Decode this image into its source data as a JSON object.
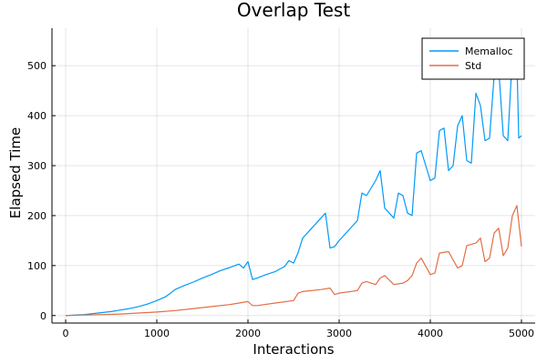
{
  "chart_data": {
    "type": "line",
    "title": "Overlap Test",
    "xlabel": "Interactions",
    "ylabel": "Elapsed Time",
    "xlim": [
      -150,
      5150
    ],
    "ylim": [
      -15,
      575
    ],
    "xticks": [
      0,
      1000,
      2000,
      3000,
      4000,
      5000
    ],
    "yticks": [
      0,
      100,
      200,
      300,
      400,
      500
    ],
    "grid": true,
    "legend_position": "top-right",
    "series": [
      {
        "name": "Memalloc",
        "color": "#009af9",
        "x": [
          0,
          100,
          200,
          300,
          400,
          500,
          600,
          700,
          800,
          900,
          1000,
          1100,
          1150,
          1200,
          1300,
          1400,
          1500,
          1600,
          1700,
          1800,
          1900,
          1950,
          2000,
          2050,
          2100,
          2200,
          2300,
          2400,
          2450,
          2500,
          2550,
          2600,
          2700,
          2800,
          2850,
          2900,
          2950,
          3000,
          3100,
          3200,
          3250,
          3300,
          3400,
          3450,
          3500,
          3600,
          3650,
          3700,
          3750,
          3800,
          3850,
          3900,
          4000,
          4050,
          4100,
          4150,
          4200,
          4250,
          4300,
          4350,
          4400,
          4450,
          4500,
          4550,
          4600,
          4650,
          4700,
          4750,
          4800,
          4850,
          4900,
          4950,
          4970,
          5000
        ],
        "y": [
          0,
          1,
          2,
          4,
          6,
          8,
          11,
          14,
          18,
          23,
          30,
          38,
          45,
          52,
          60,
          67,
          75,
          82,
          90,
          96,
          103,
          95,
          108,
          72,
          75,
          82,
          88,
          98,
          110,
          105,
          126,
          155,
          175,
          195,
          205,
          135,
          138,
          150,
          170,
          190,
          245,
          240,
          270,
          290,
          215,
          195,
          245,
          240,
          205,
          200,
          325,
          330,
          270,
          275,
          370,
          375,
          290,
          300,
          380,
          400,
          310,
          305,
          445,
          420,
          350,
          355,
          480,
          495,
          360,
          350,
          520,
          510,
          355,
          360
        ]
      },
      {
        "name": "Std",
        "color": "#e26f46",
        "x": [
          0,
          200,
          400,
          600,
          800,
          1000,
          1200,
          1400,
          1600,
          1800,
          2000,
          2050,
          2100,
          2300,
          2500,
          2550,
          2600,
          2800,
          2900,
          2950,
          3000,
          3200,
          3250,
          3300,
          3400,
          3450,
          3500,
          3600,
          3700,
          3750,
          3800,
          3850,
          3900,
          4000,
          4050,
          4100,
          4200,
          4300,
          4350,
          4400,
          4500,
          4550,
          4600,
          4650,
          4700,
          4750,
          4800,
          4850,
          4900,
          4950,
          5000
        ],
        "y": [
          0,
          1,
          2,
          3,
          5,
          7,
          10,
          14,
          18,
          22,
          28,
          20,
          20,
          25,
          30,
          45,
          48,
          52,
          55,
          42,
          45,
          50,
          65,
          68,
          62,
          75,
          80,
          62,
          65,
          70,
          80,
          105,
          115,
          82,
          85,
          125,
          128,
          95,
          100,
          140,
          145,
          155,
          108,
          115,
          165,
          175,
          120,
          135,
          200,
          220,
          138
        ]
      }
    ]
  }
}
